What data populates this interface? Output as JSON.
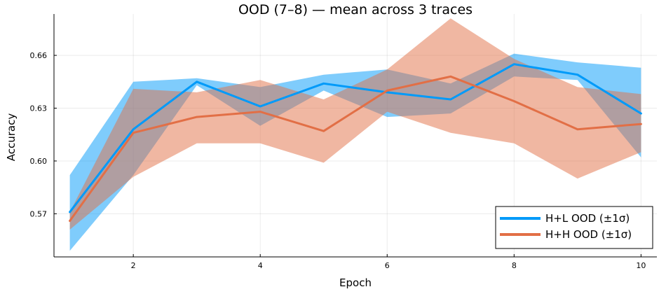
{
  "chart_data": {
    "type": "line",
    "title": "OOD (7–8) — mean across 3 traces",
    "xlabel": "Epoch",
    "ylabel": "Accuracy",
    "xlim": [
      0.75,
      10.25
    ],
    "ylim": [
      0.5455,
      0.6835
    ],
    "xticks": [
      2,
      4,
      6,
      8,
      10
    ],
    "yticks": [
      0.57,
      0.6,
      0.63,
      0.66
    ],
    "xtick_labels": [
      "2",
      "4",
      "6",
      "8",
      "10"
    ],
    "ytick_labels": [
      "0.57",
      "0.60",
      "0.63",
      "0.66"
    ],
    "grid": true,
    "legend_position": "bottom-right",
    "x": [
      1,
      2,
      3,
      4,
      5,
      6,
      7,
      8,
      9,
      10
    ],
    "series": [
      {
        "name": "H+L OOD (±1σ)",
        "color": "#009af9",
        "band_color": "#009af9",
        "band_opacity": 0.5,
        "mean": [
          0.571,
          0.618,
          0.645,
          0.631,
          0.644,
          0.639,
          0.635,
          0.655,
          0.649,
          0.627
        ],
        "upper": [
          0.592,
          0.645,
          0.647,
          0.642,
          0.649,
          0.652,
          0.644,
          0.661,
          0.656,
          0.653
        ],
        "lower": [
          0.549,
          0.592,
          0.643,
          0.62,
          0.64,
          0.625,
          0.627,
          0.648,
          0.646,
          0.602
        ]
      },
      {
        "name": "H+H OOD (±1σ)",
        "color": "#e26f46",
        "band_color": "#e26f46",
        "band_opacity": 0.5,
        "mean": [
          0.566,
          0.616,
          0.625,
          0.628,
          0.617,
          0.64,
          0.648,
          0.634,
          0.618,
          0.621
        ],
        "upper": [
          0.571,
          0.641,
          0.639,
          0.646,
          0.635,
          0.652,
          0.681,
          0.658,
          0.642,
          0.638
        ],
        "lower": [
          0.561,
          0.591,
          0.61,
          0.61,
          0.599,
          0.628,
          0.616,
          0.61,
          0.59,
          0.605
        ]
      }
    ]
  }
}
